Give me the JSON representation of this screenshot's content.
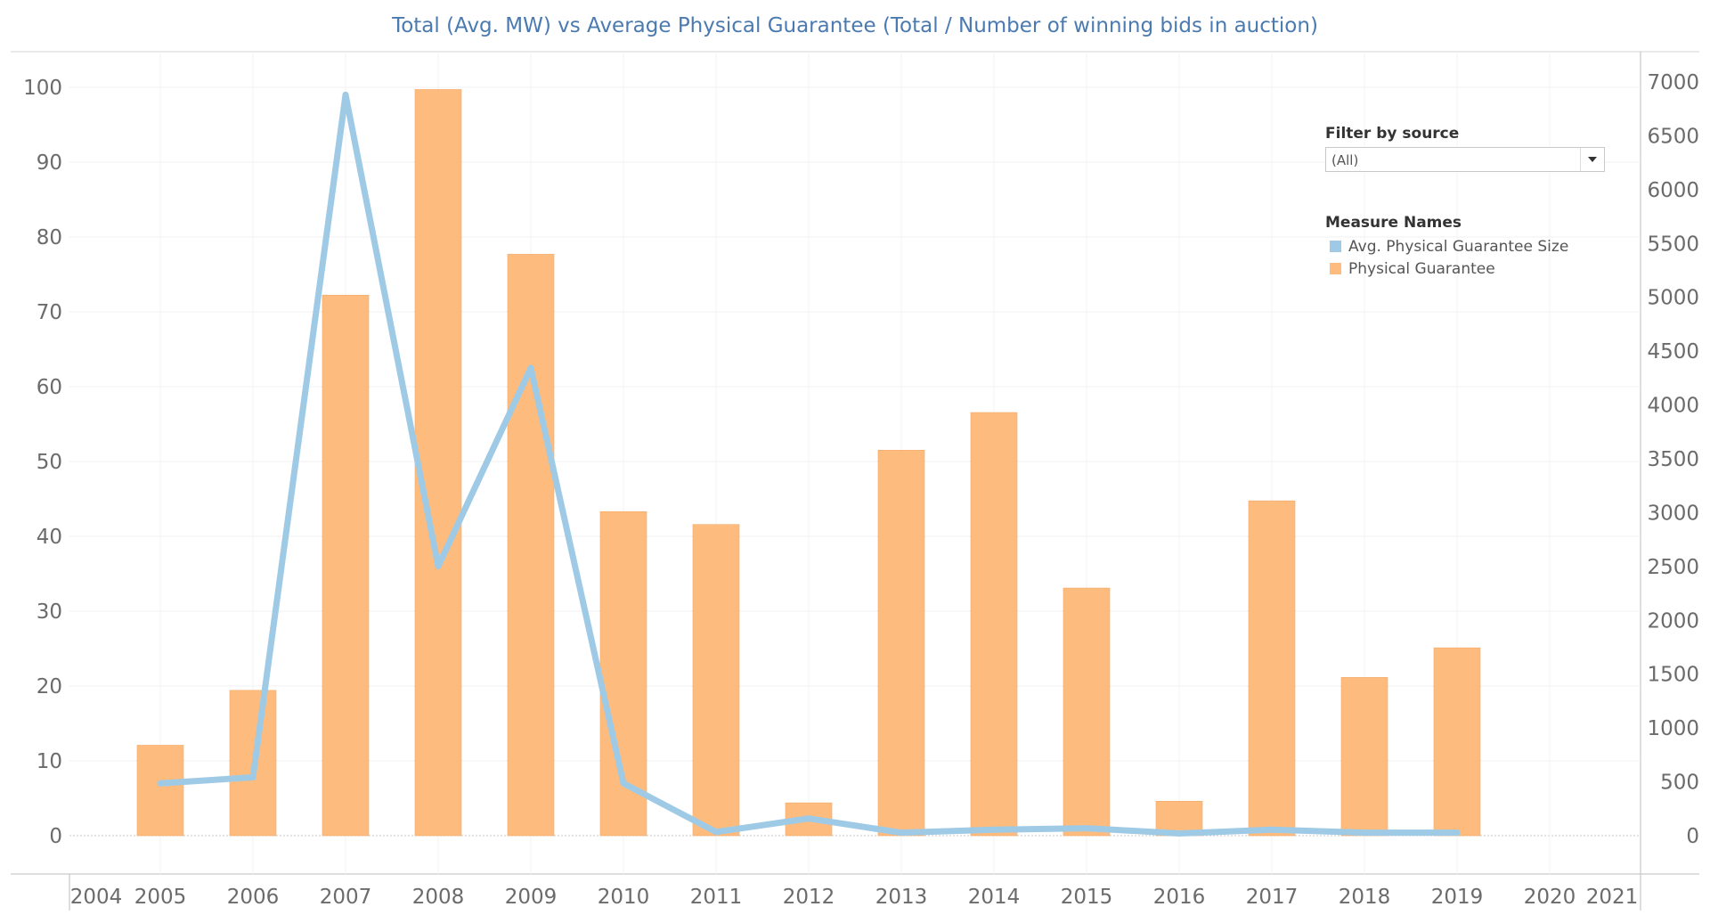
{
  "chart_data": {
    "type": "bar",
    "title": "Total (Avg. MW) vs Average Physical Guarantee (Total / Number of winning bids in auction)",
    "x_ticks": [
      "2004",
      "2005",
      "2006",
      "2007",
      "2008",
      "2009",
      "2010",
      "2011",
      "2012",
      "2013",
      "2014",
      "2015",
      "2016",
      "2017",
      "2018",
      "2019",
      "2020",
      "2021"
    ],
    "categories": [
      "2005",
      "2006",
      "2007",
      "2008",
      "2009",
      "2010",
      "2011",
      "2012",
      "2013",
      "2014",
      "2015",
      "2016",
      "2017",
      "2018",
      "2019"
    ],
    "series": [
      {
        "name": "Physical Guarantee",
        "type": "bar",
        "axis": "right",
        "color": "#fdbc7e",
        "values": [
          840,
          1350,
          5020,
          6930,
          5400,
          3010,
          2890,
          305,
          3580,
          3930,
          2300,
          320,
          3110,
          1470,
          1745
        ]
      },
      {
        "name": "Avg. Physical Guarantee Size",
        "type": "line",
        "axis": "left",
        "color": "#9fcae6",
        "values": [
          7.0,
          7.8,
          99.0,
          36.0,
          62.5,
          7.0,
          0.5,
          2.3,
          0.4,
          0.8,
          1.0,
          0.3,
          0.8,
          0.4,
          0.4
        ]
      }
    ],
    "y_left": {
      "ylim": [
        0,
        100
      ],
      "ticks": [
        0,
        10,
        20,
        30,
        40,
        50,
        60,
        70,
        80,
        90,
        100
      ]
    },
    "y_right": {
      "ylim": [
        0,
        7000
      ],
      "ticks": [
        0,
        500,
        1000,
        1500,
        2000,
        2500,
        3000,
        3500,
        4000,
        4500,
        5000,
        5500,
        6000,
        6500,
        7000
      ]
    },
    "grid": true,
    "legend_position": "top-right"
  },
  "filter": {
    "label": "Filter by source",
    "value": "(All)"
  },
  "legend": {
    "title": "Measure Names"
  }
}
